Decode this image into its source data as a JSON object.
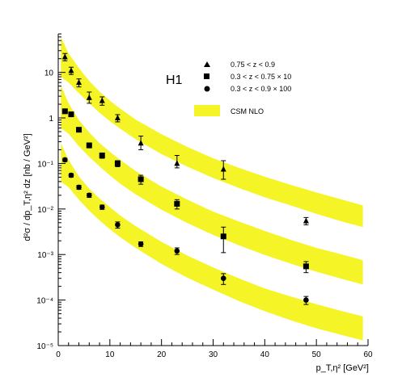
{
  "chart_data": {
    "type": "scatter",
    "experiment_label": "H1",
    "ylabel": "d²σ / dp_T,η² dz  [nb / GeV²]",
    "xlabel": "p_T,η²  [GeV²]",
    "ylog": true,
    "xlim": [
      0,
      60
    ],
    "ylim": [
      1e-05,
      70
    ],
    "grid": false,
    "legend_position": "top-right",
    "x_tick_labels": [
      "0",
      "10",
      "20",
      "30",
      "40",
      "50",
      "60"
    ],
    "y_tick_labels": [
      "10",
      "1",
      "10⁻¹",
      "10⁻²",
      "10⁻³",
      "10⁻⁴",
      "10⁻⁵"
    ],
    "series": [
      {
        "name": "0.75 < z < 0.9",
        "marker": "triangle",
        "x": [
          1.3,
          2.5,
          4.0,
          6.0,
          8.5,
          11.5,
          16.0,
          23.0,
          32.0,
          48.0
        ],
        "y": [
          22,
          11,
          6.0,
          2.8,
          2.4,
          1.0,
          0.28,
          0.1,
          0.075,
          0.0055
        ],
        "err_lo": [
          4,
          2,
          1.2,
          0.7,
          0.5,
          0.18,
          0.08,
          0.02,
          0.03,
          0.001
        ],
        "err_hi": [
          4,
          2,
          1.2,
          0.9,
          0.5,
          0.18,
          0.12,
          0.05,
          0.04,
          0.001
        ]
      },
      {
        "name": "0.3 < z < 0.75 × 10",
        "marker": "square",
        "x": [
          1.3,
          2.5,
          4.0,
          6.0,
          8.5,
          11.5,
          16.0,
          23.0,
          32.0,
          48.0
        ],
        "y": [
          1.4,
          1.2,
          0.55,
          0.25,
          0.15,
          0.1,
          0.045,
          0.013,
          0.0025,
          0.00055
        ],
        "err_lo": [
          0.15,
          0.12,
          0.06,
          0.03,
          0.02,
          0.015,
          0.01,
          0.003,
          0.0014,
          0.00015
        ],
        "err_hi": [
          0.15,
          0.12,
          0.06,
          0.03,
          0.02,
          0.015,
          0.01,
          0.003,
          0.0015,
          0.00015
        ]
      },
      {
        "name": "0.3 < z < 0.9 × 100",
        "marker": "circle",
        "x": [
          1.3,
          2.5,
          4.0,
          6.0,
          8.5,
          11.5,
          16.0,
          23.0,
          32.0,
          48.0
        ],
        "y": [
          0.12,
          0.055,
          0.03,
          0.02,
          0.011,
          0.0045,
          0.0017,
          0.0012,
          0.0003,
          0.0001
        ],
        "err_lo": [
          0.01,
          0.005,
          0.003,
          0.002,
          0.0012,
          0.0007,
          0.0002,
          0.0002,
          8e-05,
          2e-05
        ],
        "err_hi": [
          0.01,
          0.005,
          0.003,
          0.002,
          0.0012,
          0.0007,
          0.0002,
          0.0002,
          8e-05,
          2e-05
        ]
      }
    ],
    "bands": [
      {
        "name": "CSM NLO",
        "color": "#f4f427",
        "x": [
          0.5,
          2,
          4,
          6,
          8,
          10,
          12,
          15,
          20,
          25,
          30,
          35,
          40,
          45,
          50,
          55,
          59
        ],
        "lo": [
          8.0,
          6.0,
          3.5,
          2.1,
          1.3,
          0.85,
          0.58,
          0.34,
          0.16,
          0.085,
          0.048,
          0.029,
          0.018,
          0.012,
          0.0078,
          0.0053,
          0.004
        ],
        "hi": [
          60,
          26,
          12.5,
          6.5,
          3.8,
          2.4,
          1.6,
          0.92,
          0.44,
          0.23,
          0.13,
          0.08,
          0.051,
          0.034,
          0.023,
          0.016,
          0.012
        ]
      },
      {
        "name": "",
        "color": "#f4f427",
        "x": [
          0.5,
          2,
          4,
          6,
          8,
          10,
          12,
          15,
          20,
          25,
          30,
          35,
          40,
          45,
          50,
          55,
          59
        ],
        "lo": [
          0.6,
          0.45,
          0.24,
          0.14,
          0.086,
          0.055,
          0.036,
          0.021,
          0.0096,
          0.0049,
          0.0027,
          0.0016,
          0.00098,
          0.00063,
          0.00042,
          0.00029,
          0.00022
        ],
        "hi": [
          5.2,
          2.1,
          0.9,
          0.48,
          0.28,
          0.18,
          0.12,
          0.068,
          0.031,
          0.016,
          0.0088,
          0.0053,
          0.0033,
          0.0021,
          0.0014,
          0.001,
          0.00075
        ]
      },
      {
        "name": "",
        "color": "#f4f427",
        "x": [
          0.5,
          2,
          4,
          6,
          8,
          10,
          12,
          15,
          20,
          25,
          30,
          35,
          40,
          45,
          50,
          55,
          59
        ],
        "lo": [
          0.04,
          0.03,
          0.016,
          0.0092,
          0.0056,
          0.0036,
          0.0024,
          0.0014,
          0.00062,
          0.00031,
          0.00017,
          9.5e-05,
          5.7e-05,
          3.6e-05,
          2.4e-05,
          1.7e-05,
          1.3e-05
        ],
        "hi": [
          0.28,
          0.12,
          0.052,
          0.028,
          0.017,
          0.011,
          0.0072,
          0.0042,
          0.0019,
          0.00095,
          0.00052,
          0.0003,
          0.00018,
          0.00012,
          8.1e-05,
          5.7e-05,
          4.4e-05
        ]
      }
    ]
  }
}
